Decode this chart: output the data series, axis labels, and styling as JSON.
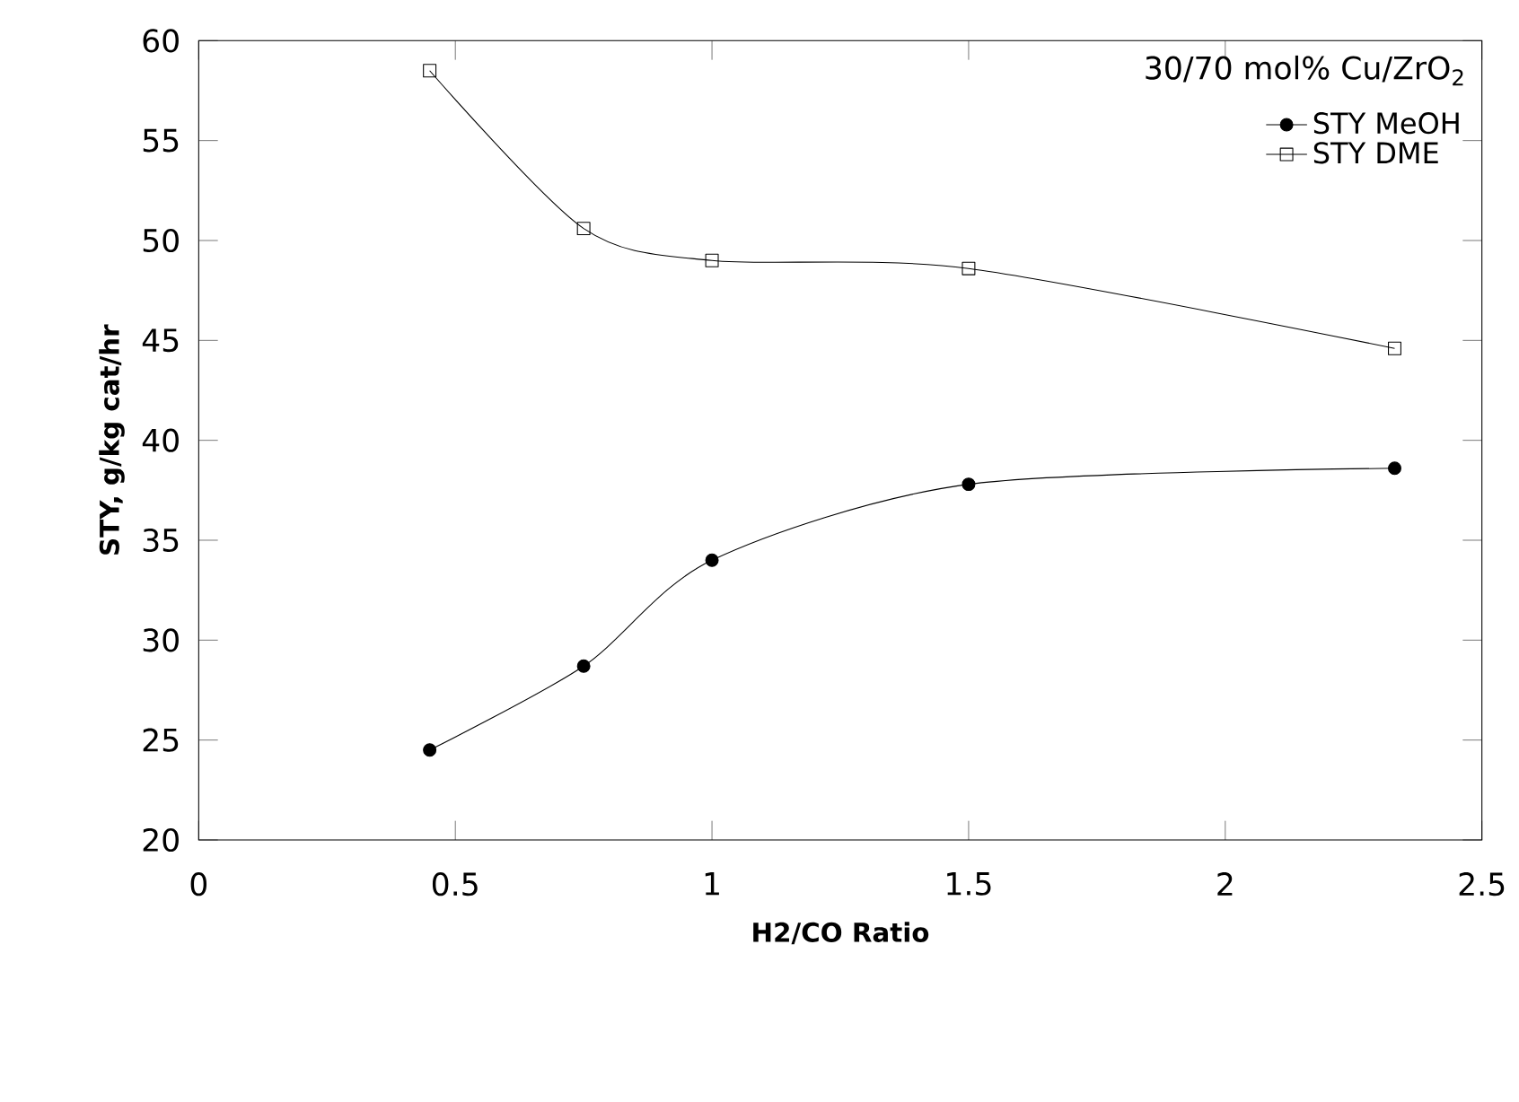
{
  "chart_data": {
    "type": "line",
    "xlabel": "H2/CO Ratio",
    "ylabel": "STY, g/kg cat/hr",
    "legend_title": "30/70 mol% Cu/ZrO$_{2}$",
    "legend": "top right",
    "x": [
      0.45,
      0.75,
      1.0,
      1.5,
      2.33
    ],
    "series": [
      {
        "name": "STY MeOH",
        "color": "#000000",
        "marker": "circle",
        "values": [
          24.5,
          28.7,
          34.0,
          37.8,
          38.6
        ]
      },
      {
        "name": "STY DME",
        "color": "#000000",
        "marker": "square",
        "values": [
          58.5,
          50.6,
          49.0,
          48.6,
          44.6
        ]
      }
    ],
    "xlim": [
      0,
      2.5
    ],
    "xticks": [
      0,
      0.5,
      1,
      1.5,
      2,
      2.5
    ],
    "ylim": [
      20,
      60
    ],
    "yticks": [
      20,
      25,
      30,
      35,
      40,
      45,
      50,
      55,
      60
    ],
    "grid": false
  }
}
